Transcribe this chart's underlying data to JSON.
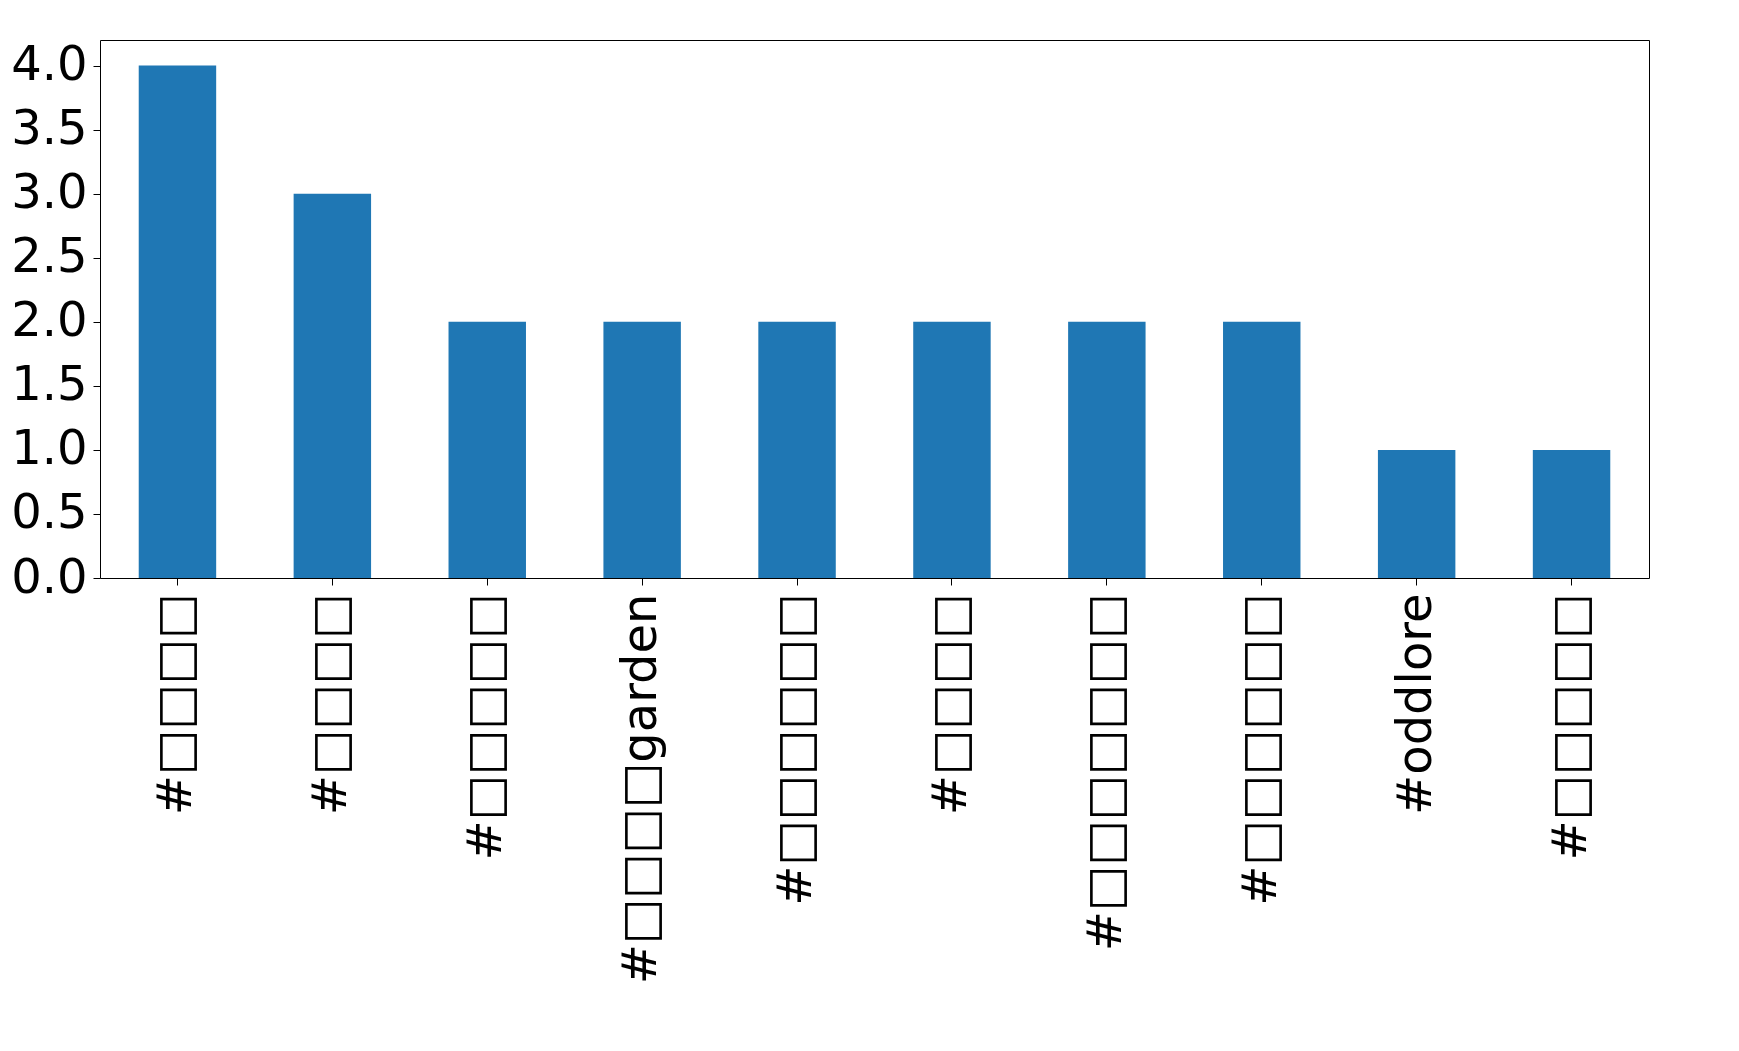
{
  "chart_data": {
    "type": "bar",
    "categories": [
      "#□□□□",
      "#□□□□",
      "#□□□□□",
      "#□□□□garden",
      "#□□□□□□",
      "#□□□□",
      "#□□□□□□□",
      "#□□□□□□",
      "#oddlore",
      "#□□□□□"
    ],
    "values": [
      4,
      3,
      2,
      2,
      2,
      2,
      2,
      2,
      1,
      1
    ],
    "color": "#1f77b4",
    "ylim": [
      0,
      4.2
    ],
    "yticks": [
      {
        "value": 0,
        "label": "0.0"
      },
      0.5,
      {
        "value": 1,
        "label": "1.0"
      },
      1.5,
      {
        "value": 2,
        "label": "2.0"
      },
      2.5,
      {
        "value": 3,
        "label": "3.0"
      },
      3.5,
      {
        "value": 4,
        "label": "4.0"
      }
    ],
    "grid": false
  }
}
